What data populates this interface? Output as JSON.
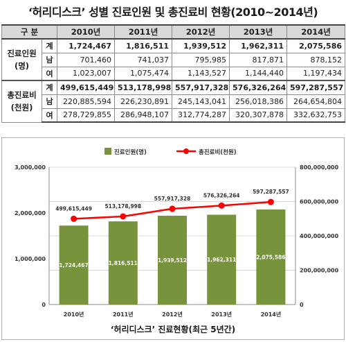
{
  "page": {
    "title": "‘허리디스크’ 성별 진료인원 및 총진료비 현황(2010~2014년)"
  },
  "table": {
    "header_label": "구 분",
    "years": [
      "2010년",
      "2011년",
      "2012년",
      "2013년",
      "2014년"
    ],
    "groups": [
      {
        "label_line1": "진료인원",
        "label_line2": "(명)",
        "rows": [
          {
            "sub": "계",
            "values": [
              "1,724,467",
              "1,816,511",
              "1,939,512",
              "1,962,311",
              "2,075,586"
            ]
          },
          {
            "sub": "남",
            "values": [
              "701,460",
              "741,037",
              "795,985",
              "817,871",
              "878,152"
            ]
          },
          {
            "sub": "여",
            "values": [
              "1,023,007",
              "1,075,474",
              "1,143,527",
              "1,144,440",
              "1,197,434"
            ]
          }
        ]
      },
      {
        "label_line1": "총진료비",
        "label_line2": "(천원)",
        "rows": [
          {
            "sub": "계",
            "values": [
              "499,615,449",
              "513,178,998",
              "557,917,328",
              "576,326,264",
              "597,287,557"
            ]
          },
          {
            "sub": "남",
            "values": [
              "220,885,594",
              "226,230,891",
              "245,143,041",
              "256,018,386",
              "264,654,804"
            ]
          },
          {
            "sub": "여",
            "values": [
              "278,729,855",
              "286,948,107",
              "312,774,287",
              "320,307,878",
              "332,632,753"
            ]
          }
        ]
      }
    ]
  },
  "chart_data": {
    "type": "bar",
    "title": "‘허리디스크’ 진료현황(최근 5년간)",
    "categories": [
      "2010년",
      "2011년",
      "2012년",
      "2013년",
      "2014년"
    ],
    "series": [
      {
        "name": "진료인원(명)",
        "type": "bar",
        "axis": "left",
        "color": "#77933c",
        "values": [
          1724467,
          1816511,
          1939512,
          1962311,
          2075586
        ],
        "labels": [
          "1,724,467",
          "1,816,511",
          "1,939,512",
          "1,962,311",
          "2,075,586"
        ]
      },
      {
        "name": "총진료비(천원)",
        "type": "line",
        "axis": "right",
        "color": "#ff0000",
        "values": [
          499615449,
          513178998,
          557917328,
          576326264,
          597287557
        ],
        "labels": [
          "499,615,449",
          "513,178,998",
          "557,917,328",
          "576,326,264",
          "597,287,557"
        ]
      }
    ],
    "y_left": {
      "ylim": [
        0,
        3000000
      ],
      "ticks": [
        "0",
        "1,000,000",
        "2,000,000",
        "3,000,000"
      ]
    },
    "y_right": {
      "ylim": [
        0,
        800000000
      ],
      "ticks": [
        "0",
        "200,000,000",
        "400,000,000",
        "600,000,000",
        "800,000,000"
      ]
    },
    "grid": true,
    "legend_position": "top"
  }
}
